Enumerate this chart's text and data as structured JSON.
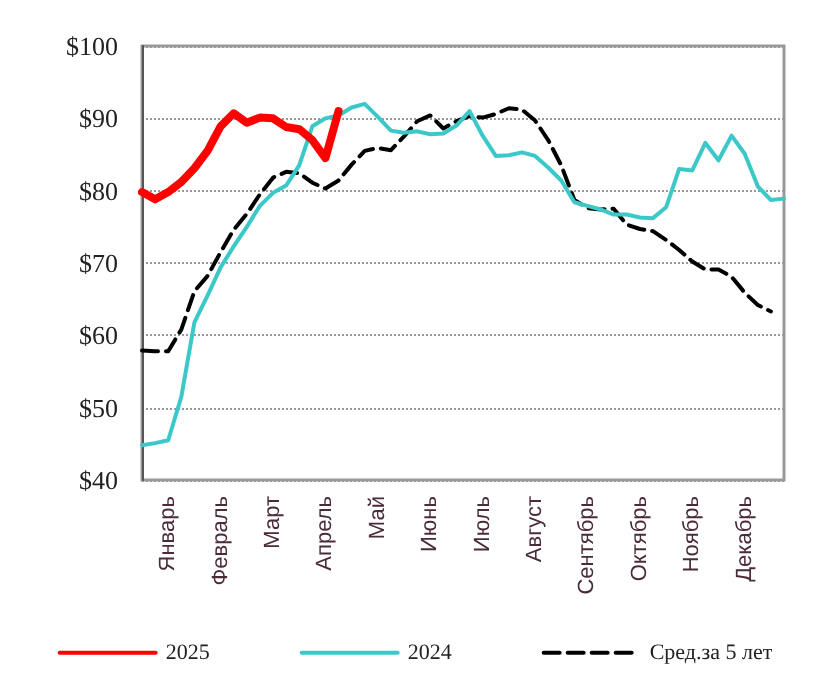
{
  "chart_data": {
    "type": "line",
    "categories": [
      null,
      null,
      "Январь",
      null,
      null,
      null,
      "Февраль",
      null,
      null,
      null,
      "Март",
      null,
      null,
      null,
      "Апрель",
      null,
      null,
      null,
      "Май",
      null,
      null,
      null,
      "Июнь",
      null,
      null,
      null,
      "Июль",
      null,
      null,
      null,
      "Август",
      null,
      null,
      null,
      "Сентябрь",
      null,
      null,
      null,
      "Октябрь",
      null,
      null,
      null,
      "Ноябрь",
      null,
      null,
      null,
      "Декабрь",
      null,
      null,
      null
    ],
    "ylim": [
      40,
      100
    ],
    "yticks": [
      {
        "value": 40,
        "label": "$40"
      },
      {
        "value": 50,
        "label": "$50"
      },
      {
        "value": 60,
        "label": "$60"
      },
      {
        "value": 70,
        "label": "$70"
      },
      {
        "value": 80,
        "label": "$80"
      },
      {
        "value": 90,
        "label": "$90"
      },
      {
        "value": 100,
        "label": "$100"
      }
    ],
    "grid": "y",
    "legend": "bottom",
    "marker": "none",
    "series": [
      {
        "name": "2025",
        "color": "#ff0000",
        "line_style": "solid",
        "values": [
          79.8,
          78.8,
          79.8,
          81.2,
          83.1,
          85.5,
          88.9,
          90.7,
          89.4,
          90.1,
          90.0,
          88.8,
          88.5,
          87.0,
          84.5,
          91.0,
          null,
          null,
          null,
          null,
          null,
          null,
          null,
          null,
          null,
          null,
          null,
          null,
          null,
          null,
          null,
          null,
          null,
          null,
          null,
          null,
          null,
          null,
          null,
          null,
          null,
          null,
          null,
          null,
          null,
          null,
          null,
          null,
          null,
          null
        ]
      },
      {
        "name": "2024",
        "color": "#3cc8c8",
        "line_style": "solid",
        "values": [
          44.8,
          45.1,
          45.5,
          51.5,
          61.8,
          65.5,
          69.4,
          72.3,
          75.0,
          77.9,
          79.7,
          80.7,
          83.5,
          88.9,
          90.0,
          90.4,
          91.5,
          92.0,
          90.2,
          88.3,
          88.0,
          88.2,
          87.8,
          87.9,
          89.0,
          91.0,
          87.6,
          84.8,
          84.9,
          85.3,
          84.8,
          83.2,
          81.4,
          78.4,
          77.9,
          77.4,
          76.7,
          76.7,
          76.3,
          76.2,
          77.7,
          83.0,
          82.8,
          86.6,
          84.2,
          87.6,
          85.1,
          80.6,
          78.7,
          78.9
        ]
      },
      {
        "name": "Сред.за 5 лет",
        "color": "#000000",
        "line_style": "dashed",
        "values": [
          57.9,
          57.8,
          57.8,
          60.8,
          66.1,
          68.2,
          71.5,
          74.6,
          76.8,
          79.5,
          81.8,
          82.6,
          82.4,
          81.1,
          80.3,
          81.4,
          83.6,
          85.5,
          85.9,
          85.6,
          87.5,
          89.6,
          90.4,
          88.6,
          89.6,
          90.3,
          90.1,
          90.6,
          91.4,
          91.2,
          89.7,
          87.0,
          83.5,
          78.7,
          77.6,
          77.4,
          77.5,
          75.3,
          74.7,
          74.4,
          73.2,
          71.8,
          70.2,
          69.1,
          69.1,
          68.1,
          65.9,
          64.2,
          63.3,
          null
        ]
      }
    ]
  }
}
